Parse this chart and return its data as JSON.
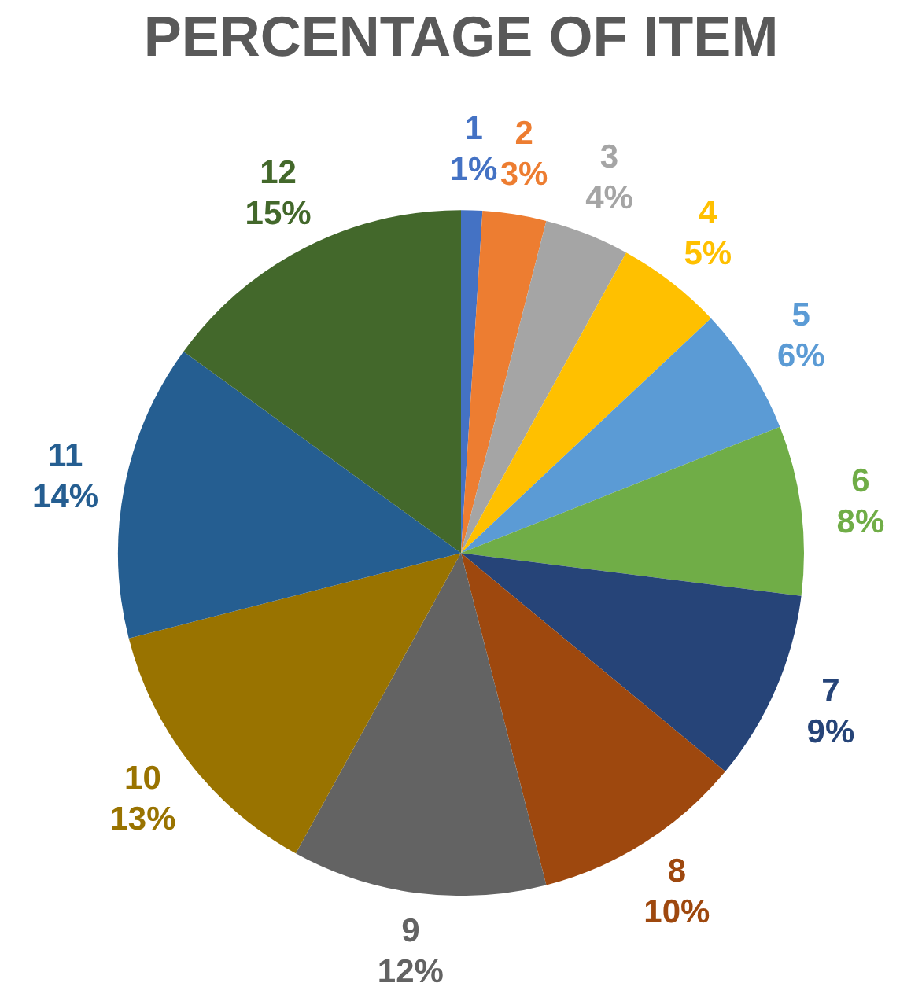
{
  "chart_data": {
    "type": "pie",
    "title": "PERCENTAGE OF ITEM",
    "categories": [
      "1",
      "2",
      "3",
      "4",
      "5",
      "6",
      "7",
      "8",
      "9",
      "10",
      "11",
      "12"
    ],
    "values": [
      1,
      3,
      4,
      5,
      6,
      8,
      9,
      10,
      12,
      13,
      14,
      15
    ],
    "value_labels": [
      "1%",
      "3%",
      "4%",
      "5%",
      "6%",
      "8%",
      "9%",
      "10%",
      "12%",
      "13%",
      "14%",
      "15%"
    ],
    "colors": [
      "#4472c4",
      "#ed7d31",
      "#a5a5a5",
      "#ffc000",
      "#5b9bd5",
      "#70ad47",
      "#264478",
      "#9e480e",
      "#636363",
      "#997300",
      "#255e91",
      "#43682b"
    ],
    "legend": false
  }
}
